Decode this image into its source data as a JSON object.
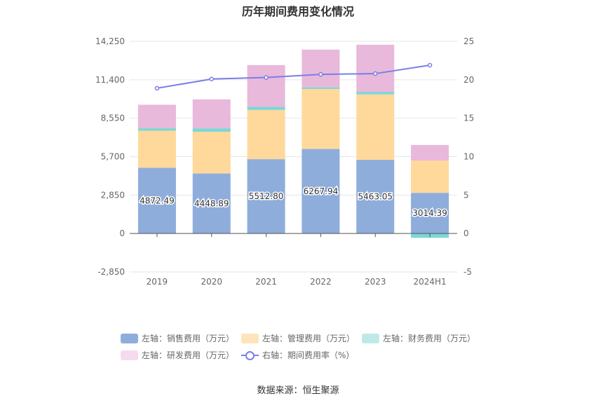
{
  "title": "历年期间费用变化情况",
  "source": "数据来源：恒生聚源",
  "colors": {
    "sales": "#8eaddb",
    "admin": "#fed99b",
    "finance": "#7dd6d6",
    "rd": "#e8b9db",
    "rate": "#7b7ee6"
  },
  "legend": [
    {
      "label": "左轴：销售费用（万元）",
      "color": "#8eaddb",
      "kind": "bar"
    },
    {
      "label": "左轴：管理费用（万元）",
      "color": "#fde4bd",
      "kind": "bar"
    },
    {
      "label": "左轴：财务费用（万元）",
      "color": "#bfe9e9",
      "kind": "bar"
    },
    {
      "label": "左轴：研发费用（万元）",
      "color": "#f4dcee",
      "kind": "bar"
    },
    {
      "label": "右轴：期间费用率（%）",
      "color": "#7b7ee6",
      "kind": "line"
    }
  ],
  "chart_data": {
    "type": "bar",
    "stacked": true,
    "categories": [
      "2019",
      "2020",
      "2021",
      "2022",
      "2023",
      "2024H1"
    ],
    "series": [
      {
        "name": "左轴：销售费用（万元）",
        "axis": "left",
        "values": [
          4872.49,
          4448.89,
          5512.8,
          6267.94,
          5463.05,
          3014.39
        ],
        "labels": [
          "4872.49",
          "4448.89",
          "5512.80",
          "6267.94",
          "5463.05",
          "3014.39"
        ]
      },
      {
        "name": "左轴：管理费用（万元）",
        "axis": "left",
        "values": [
          2750,
          3100,
          3650,
          4450,
          4850,
          2400
        ]
      },
      {
        "name": "左轴：财务费用（万元）",
        "axis": "left",
        "values": [
          180,
          250,
          230,
          120,
          190,
          -320
        ]
      },
      {
        "name": "左轴：研发费用（万元）",
        "axis": "left",
        "values": [
          1750,
          2150,
          3100,
          2800,
          3500,
          1150
        ]
      },
      {
        "name": "右轴：期间费用率（%）",
        "axis": "right",
        "type": "line",
        "values": [
          18.9,
          20.1,
          20.3,
          20.7,
          20.8,
          21.9
        ]
      }
    ],
    "y_left": {
      "min": -2850,
      "max": 14250,
      "ticks": [
        "14,250",
        "11,400",
        "8,550",
        "5,700",
        "2,850",
        "0",
        "-2,850"
      ],
      "tick_values": [
        14250,
        11400,
        8550,
        5700,
        2850,
        0,
        -2850
      ]
    },
    "y_right": {
      "min": -5,
      "max": 25,
      "ticks": [
        "25",
        "20",
        "15",
        "10",
        "5",
        "0",
        "-5"
      ],
      "tick_values": [
        25,
        20,
        15,
        10,
        5,
        0,
        -5
      ]
    },
    "grid": true,
    "legend_position": "bottom"
  }
}
